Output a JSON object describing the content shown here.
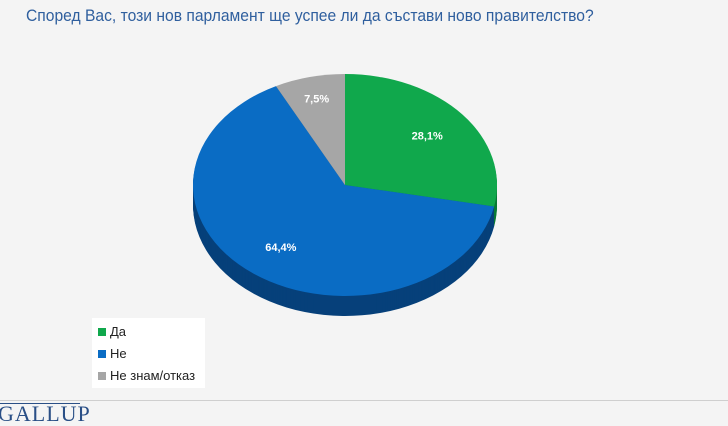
{
  "chart_data": {
    "type": "pie",
    "title": "Според Вас, този нов парламент ще успее ли да състави ново правителство?",
    "slices": [
      {
        "label": "Да",
        "value": 28.1,
        "display": "28,1%",
        "color": "#10a84c",
        "side": "#0a7a36"
      },
      {
        "label": "Не",
        "value": 64.4,
        "display": "64,4%",
        "color": "#0a6cc4",
        "side": "#06407a"
      },
      {
        "label": "Не знам/отказ",
        "value": 7.5,
        "display": "7,5%",
        "color": "#a6a6a6",
        "side": "#6e6e6e"
      }
    ],
    "legend_placement": "bottom-left",
    "style": "3d"
  },
  "logo": "GALLUP"
}
